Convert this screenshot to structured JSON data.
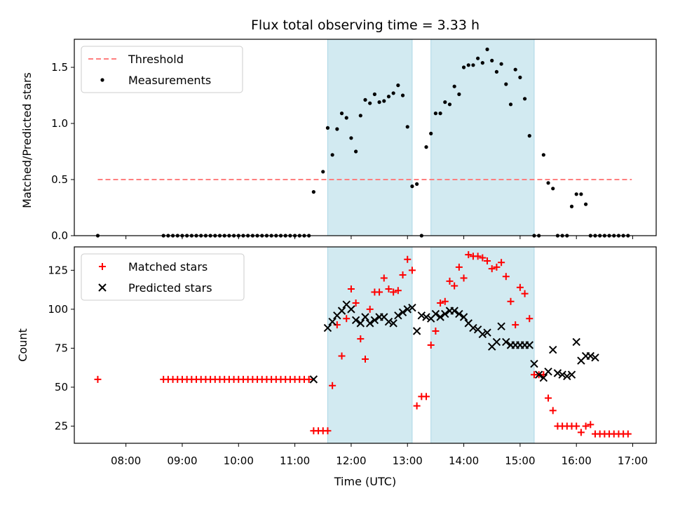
{
  "chart_data": {
    "title": "Flux total observing time = 3.33 h",
    "xlabel": "Time (UTC)",
    "x_unit": "hours UTC",
    "x_range": [
      "07:05",
      "17:25"
    ],
    "x_ticks": [
      "08:00",
      "09:00",
      "10:00",
      "11:00",
      "12:00",
      "13:00",
      "14:00",
      "15:00",
      "16:00",
      "17:00"
    ],
    "colors": {
      "threshold": "#ff7f7f",
      "measurements": "#000000",
      "matched": "#ff0000",
      "predicted": "#000000",
      "band": "#add8e6"
    },
    "shaded_intervals": [
      [
        "11:35",
        "13:05"
      ],
      [
        "13:25",
        "15:15"
      ]
    ],
    "panels": [
      {
        "type": "scatter",
        "ylabel": "Matched/Predicted stars",
        "ylim": [
          0,
          1.75
        ],
        "y_ticks": [
          "0.0",
          "0.5",
          "1.0",
          "1.5"
        ],
        "legend": "top-left",
        "threshold": {
          "name": "Threshold",
          "value": 0.5,
          "x": [
            "07:30",
            "16:59"
          ]
        },
        "series": [
          {
            "name": "Measurements",
            "x": [
              "07:30",
              "08:40",
              "08:45",
              "08:50",
              "08:55",
              "09:00",
              "09:05",
              "09:10",
              "09:15",
              "09:20",
              "09:25",
              "09:30",
              "09:35",
              "09:40",
              "09:45",
              "09:50",
              "09:55",
              "10:00",
              "10:05",
              "10:10",
              "10:15",
              "10:20",
              "10:25",
              "10:30",
              "10:35",
              "10:40",
              "10:45",
              "10:50",
              "10:55",
              "11:00",
              "11:05",
              "11:10",
              "11:15",
              "11:20",
              "11:30",
              "11:35",
              "11:40",
              "11:45",
              "11:50",
              "11:55",
              "12:00",
              "12:05",
              "12:10",
              "12:15",
              "12:20",
              "12:25",
              "12:30",
              "12:35",
              "12:40",
              "12:45",
              "12:50",
              "12:55",
              "13:00",
              "13:05",
              "13:10",
              "13:15",
              "13:20",
              "13:25",
              "13:30",
              "13:35",
              "13:40",
              "13:45",
              "13:50",
              "13:55",
              "14:00",
              "14:05",
              "14:10",
              "14:15",
              "14:20",
              "14:25",
              "14:30",
              "14:35",
              "14:40",
              "14:45",
              "14:50",
              "14:55",
              "15:00",
              "15:05",
              "15:10",
              "15:15",
              "15:20",
              "15:25",
              "15:30",
              "15:35",
              "15:40",
              "15:45",
              "15:50",
              "15:55",
              "16:00",
              "16:05",
              "16:10",
              "16:15",
              "16:20",
              "16:25",
              "16:30",
              "16:35",
              "16:40",
              "16:45",
              "16:50",
              "16:55"
            ],
            "y": [
              0,
              0,
              0,
              0,
              0,
              0,
              0,
              0,
              0,
              0,
              0,
              0,
              0,
              0,
              0,
              0,
              0,
              0,
              0,
              0,
              0,
              0,
              0,
              0,
              0,
              0,
              0,
              0,
              0,
              0,
              0,
              0,
              0,
              0.39,
              0.57,
              0.96,
              0.72,
              0.95,
              1.09,
              1.05,
              0.87,
              0.75,
              1.07,
              1.21,
              1.18,
              1.26,
              1.19,
              1.2,
              1.24,
              1.27,
              1.34,
              1.25,
              0.97,
              0.44,
              0.46,
              0,
              0.79,
              0.91,
              1.09,
              1.09,
              1.19,
              1.17,
              1.33,
              1.26,
              1.5,
              1.52,
              1.52,
              1.58,
              1.54,
              1.66,
              1.56,
              1.46,
              1.53,
              1.35,
              1.17,
              1.48,
              1.41,
              1.22,
              0.89,
              0,
              0,
              0.72,
              0.47,
              0.42,
              0,
              0,
              0,
              0.26,
              0.37,
              0.37,
              0.28,
              0,
              0,
              0,
              0,
              0,
              0,
              0,
              0,
              0
            ]
          }
        ]
      },
      {
        "type": "scatter",
        "ylabel": "Count",
        "ylim": [
          14,
          140
        ],
        "y_ticks": [
          "25",
          "50",
          "75",
          "100",
          "125"
        ],
        "legend": "top-left",
        "series": [
          {
            "name": "Matched stars",
            "marker": "+",
            "x": [
              "07:30",
              "08:40",
              "08:45",
              "08:50",
              "08:55",
              "09:00",
              "09:05",
              "09:10",
              "09:15",
              "09:20",
              "09:25",
              "09:30",
              "09:35",
              "09:40",
              "09:45",
              "09:50",
              "09:55",
              "10:00",
              "10:05",
              "10:10",
              "10:15",
              "10:20",
              "10:25",
              "10:30",
              "10:35",
              "10:40",
              "10:45",
              "10:50",
              "10:55",
              "11:00",
              "11:05",
              "11:10",
              "11:15",
              "11:20",
              "11:25",
              "11:30",
              "11:35",
              "11:40",
              "11:45",
              "11:50",
              "11:55",
              "12:00",
              "12:05",
              "12:10",
              "12:15",
              "12:20",
              "12:25",
              "12:30",
              "12:35",
              "12:40",
              "12:45",
              "12:50",
              "12:55",
              "13:00",
              "13:05",
              "13:10",
              "13:15",
              "13:20",
              "13:25",
              "13:30",
              "13:35",
              "13:40",
              "13:45",
              "13:50",
              "13:55",
              "14:00",
              "14:05",
              "14:10",
              "14:15",
              "14:20",
              "14:25",
              "14:30",
              "14:35",
              "14:40",
              "14:45",
              "14:50",
              "14:55",
              "15:00",
              "15:05",
              "15:10",
              "15:15",
              "15:20",
              "15:25",
              "15:30",
              "15:35",
              "15:40",
              "15:45",
              "15:50",
              "15:55",
              "16:00",
              "16:05",
              "16:10",
              "16:15",
              "16:20",
              "16:25",
              "16:30",
              "16:35",
              "16:40",
              "16:45",
              "16:50",
              "16:55"
            ],
            "y": [
              55,
              55,
              55,
              55,
              55,
              55,
              55,
              55,
              55,
              55,
              55,
              55,
              55,
              55,
              55,
              55,
              55,
              55,
              55,
              55,
              55,
              55,
              55,
              55,
              55,
              55,
              55,
              55,
              55,
              55,
              55,
              55,
              55,
              22,
              22,
              22,
              22,
              51,
              90,
              70,
              94,
              113,
              104,
              81,
              68,
              100,
              111,
              111,
              120,
              113,
              111,
              112,
              122,
              132,
              125,
              38,
              44,
              44,
              77,
              86,
              104,
              105,
              118,
              115,
              127,
              120,
              135,
              134,
              134,
              133,
              131,
              126,
              127,
              130,
              121,
              105,
              90,
              114,
              110,
              94,
              58,
              58,
              58,
              43,
              35,
              25,
              25,
              25,
              25,
              25,
              21,
              25,
              26,
              20,
              20,
              20,
              20,
              20,
              20,
              20,
              20
            ]
          },
          {
            "name": "Predicted stars",
            "marker": "x",
            "x": [
              "11:20",
              "11:35",
              "11:40",
              "11:45",
              "11:50",
              "11:55",
              "12:00",
              "12:05",
              "12:10",
              "12:15",
              "12:20",
              "12:25",
              "12:30",
              "12:35",
              "12:40",
              "12:45",
              "12:50",
              "12:55",
              "13:00",
              "13:05",
              "13:10",
              "13:15",
              "13:20",
              "13:25",
              "13:30",
              "13:35",
              "13:40",
              "13:45",
              "13:50",
              "13:55",
              "14:00",
              "14:05",
              "14:10",
              "14:15",
              "14:20",
              "14:25",
              "14:30",
              "14:35",
              "14:40",
              "14:45",
              "14:50",
              "14:55",
              "15:00",
              "15:05",
              "15:10",
              "15:15",
              "15:20",
              "15:25",
              "15:30",
              "15:35",
              "15:40",
              "15:45",
              "15:50",
              "15:55",
              "16:00",
              "16:05",
              "16:10",
              "16:15",
              "16:20"
            ],
            "y": [
              55,
              88,
              92,
              96,
              99,
              103,
              100,
              93,
              91,
              95,
              91,
              93,
              95,
              95,
              92,
              91,
              96,
              98,
              100,
              101,
              86,
              96,
              95,
              94,
              97,
              95,
              97,
              99,
              99,
              97,
              95,
              91,
              88,
              87,
              84,
              85,
              76,
              79,
              89,
              79,
              77,
              77,
              77,
              77,
              77,
              65,
              58,
              56,
              60,
              74,
              59,
              58,
              57,
              58,
              79,
              67,
              70,
              70,
              69
            ]
          }
        ]
      }
    ]
  }
}
